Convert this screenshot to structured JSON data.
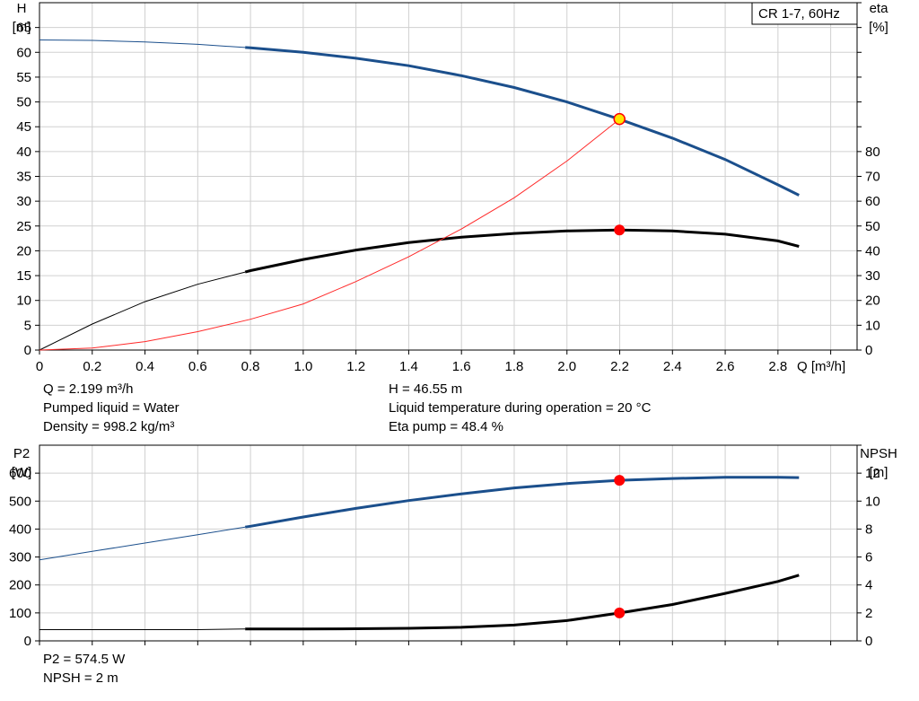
{
  "colors": {
    "head": "#1b4f8c",
    "eta": "#000000",
    "efficiency_curve": "#ff2a2a",
    "p2": "#1b4f8c",
    "npsh": "#000000",
    "marker": "#ff0000",
    "marker_head_fill": "#ffe600",
    "grid": "#d0d0d0",
    "frame": "#000000"
  },
  "legend": {
    "label": "CR 1-7, 60Hz"
  },
  "upper_info": {
    "left": [
      "Q = 2.199 m³/h",
      "Pumped liquid = Water",
      "Density = 998.2 kg/m³"
    ],
    "right": [
      "H = 46.55 m",
      "Liquid temperature during operation = 20 °C",
      "Eta pump = 48.4 %"
    ]
  },
  "lower_info": {
    "left": [
      "P2 = 574.5 W",
      "NPSH = 2 m"
    ]
  },
  "chart_data": [
    {
      "type": "line",
      "panel": "upper",
      "xlabel": "Q [m³/h]",
      "ylabel_left": [
        "H",
        "[m]"
      ],
      "ylabel_right": [
        "eta",
        "[%]"
      ],
      "xlim": [
        0,
        3.1
      ],
      "xticks": [
        0,
        0.2,
        0.4,
        0.6,
        0.8,
        1.0,
        1.2,
        1.4,
        1.6,
        1.8,
        2.0,
        2.2,
        2.4,
        2.6,
        2.8
      ],
      "xtick_labels": [
        "0",
        "0.2",
        "0.4",
        "0.6",
        "0.8",
        "1.0",
        "1.2",
        "1.4",
        "1.6",
        "1.8",
        "2.0",
        "2.2",
        "2.4",
        "2.6",
        "2.8"
      ],
      "ylim_left": [
        0,
        70
      ],
      "yticks_left": [
        0,
        5,
        10,
        15,
        20,
        25,
        30,
        35,
        40,
        45,
        50,
        55,
        60,
        65
      ],
      "ylim_right": [
        0,
        140
      ],
      "yticks_right": [
        0,
        10,
        20,
        30,
        40,
        50,
        60,
        70,
        80
      ],
      "grid": true,
      "series": [
        {
          "key": "head",
          "axis": "left",
          "color_key": "head",
          "x": [
            0,
            0.2,
            0.4,
            0.6,
            0.8,
            1.0,
            1.2,
            1.4,
            1.6,
            1.8,
            2.0,
            2.2,
            2.4,
            2.6,
            2.8,
            2.88
          ],
          "y": [
            62.5,
            62.4,
            62.1,
            61.6,
            60.9,
            60.0,
            58.8,
            57.3,
            55.3,
            52.9,
            50.0,
            46.5,
            42.7,
            38.4,
            33.3,
            31.2
          ],
          "bold_from": 0.78
        },
        {
          "key": "eta",
          "axis": "right",
          "color_key": "eta",
          "x": [
            0,
            0.2,
            0.4,
            0.6,
            0.8,
            1.0,
            1.2,
            1.4,
            1.6,
            1.8,
            2.0,
            2.2,
            2.4,
            2.6,
            2.8,
            2.88
          ],
          "y": [
            0,
            10.5,
            19.5,
            26.5,
            32.0,
            36.5,
            40.3,
            43.3,
            45.5,
            47.0,
            48.0,
            48.4,
            48.0,
            46.7,
            44.0,
            41.8
          ],
          "bold_from": 0.78
        },
        {
          "key": "efficiency_curve",
          "axis": "left",
          "color_key": "efficiency_curve",
          "x": [
            0,
            0.2,
            0.4,
            0.6,
            0.8,
            1.0,
            1.2,
            1.4,
            1.6,
            1.8,
            2.0,
            2.2
          ],
          "y": [
            0,
            0.4,
            1.7,
            3.7,
            6.2,
            9.3,
            13.8,
            18.8,
            24.4,
            30.7,
            38.1,
            46.55
          ],
          "bold_from": 99
        }
      ],
      "operating_points": [
        {
          "name": "head-point",
          "x": 2.199,
          "y": 46.55,
          "axis": "left",
          "style": "head"
        },
        {
          "name": "eta-point",
          "x": 2.199,
          "y": 48.4,
          "axis": "right",
          "style": "normal"
        }
      ]
    },
    {
      "type": "line",
      "panel": "lower",
      "ylabel_left": [
        "P2",
        "[W]"
      ],
      "ylabel_right": [
        "NPSH",
        "[m]"
      ],
      "xlim": [
        0,
        3.1
      ],
      "xticks": [
        0,
        0.2,
        0.4,
        0.6,
        0.8,
        1.0,
        1.2,
        1.4,
        1.6,
        1.8,
        2.0,
        2.2,
        2.4,
        2.6,
        2.8
      ],
      "ylim_left": [
        0,
        700
      ],
      "yticks_left": [
        0,
        100,
        200,
        300,
        400,
        500,
        600
      ],
      "ylim_right": [
        0,
        14
      ],
      "yticks_right": [
        0,
        2,
        4,
        6,
        8,
        10,
        12
      ],
      "grid": true,
      "series": [
        {
          "key": "p2",
          "axis": "left",
          "color_key": "p2",
          "x": [
            0,
            0.2,
            0.4,
            0.6,
            0.8,
            1.0,
            1.2,
            1.4,
            1.6,
            1.8,
            2.0,
            2.2,
            2.4,
            2.6,
            2.8,
            2.88
          ],
          "y": [
            290,
            320,
            350,
            380,
            410,
            443,
            474,
            502,
            526,
            547,
            563,
            574.5,
            581,
            585,
            585,
            584
          ],
          "bold_from": 0.78
        },
        {
          "key": "npsh",
          "axis": "right",
          "color_key": "npsh",
          "x": [
            0,
            0.2,
            0.4,
            0.6,
            0.8,
            1.0,
            1.2,
            1.4,
            1.6,
            1.8,
            2.0,
            2.2,
            2.4,
            2.6,
            2.8,
            2.88
          ],
          "y": [
            0.8,
            0.8,
            0.8,
            0.8,
            0.85,
            0.85,
            0.87,
            0.9,
            0.97,
            1.13,
            1.45,
            2.0,
            2.6,
            3.4,
            4.25,
            4.7
          ],
          "bold_from": 0.78
        }
      ],
      "operating_points": [
        {
          "name": "p2-point",
          "x": 2.199,
          "y": 574.5,
          "axis": "left",
          "style": "normal"
        },
        {
          "name": "npsh-point",
          "x": 2.199,
          "y": 2.0,
          "axis": "right",
          "style": "normal"
        }
      ]
    }
  ]
}
